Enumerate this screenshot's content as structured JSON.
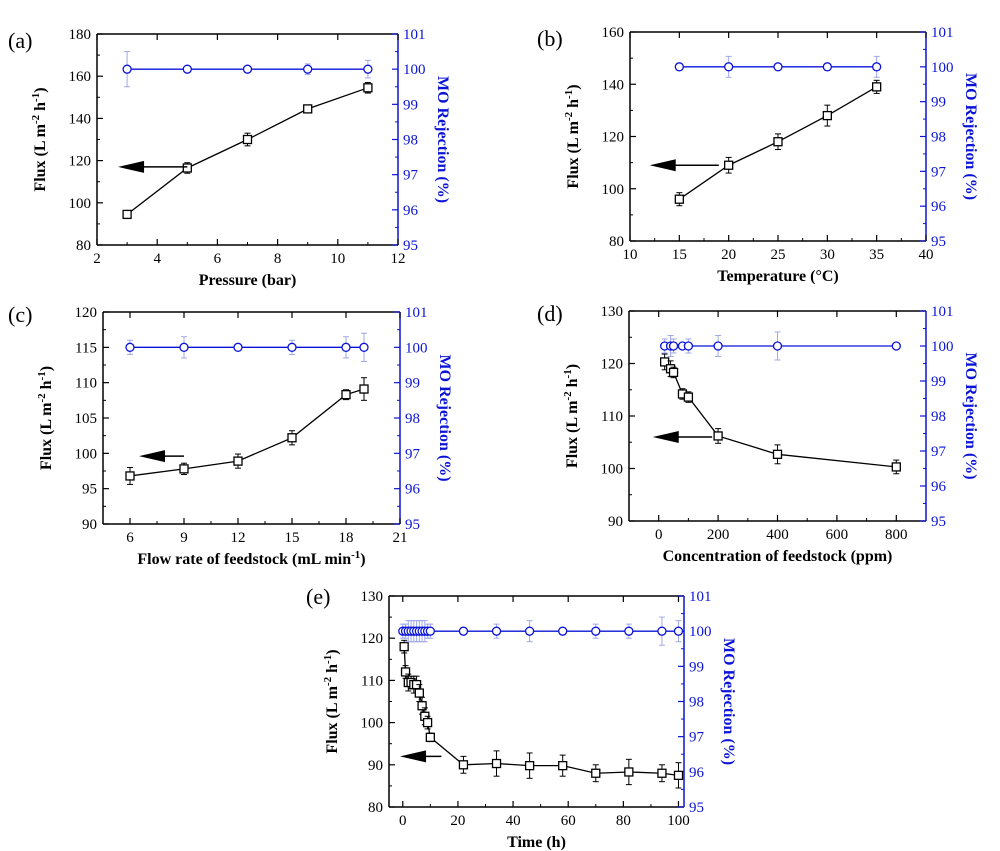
{
  "colors": {
    "flux": "#000000",
    "rejection": "#0b14d6",
    "rejection_err": "#9fa8e8"
  },
  "chart_data": [
    {
      "id": "a",
      "type": "line",
      "panel_label": "(a)",
      "xlabel": "Pressure (bar)",
      "ylabel": "Flux (L m-2 h-1)",
      "y2label": "MO Rejection (%)",
      "xlim": [
        2,
        12
      ],
      "xticks": [
        2,
        4,
        6,
        8,
        10,
        12
      ],
      "xtick_labels": [
        "2",
        "4",
        "6",
        "8",
        "10",
        "12"
      ],
      "ylim": [
        80,
        180
      ],
      "yticks": [
        80,
        100,
        120,
        140,
        160,
        180
      ],
      "ytick_labels": [
        "80",
        "100",
        "120",
        "140",
        "160",
        "180"
      ],
      "y2lim": [
        95,
        101
      ],
      "y2ticks": [
        95,
        96,
        97,
        98,
        99,
        100,
        101
      ],
      "y2tick_labels": [
        "95",
        "96",
        "97",
        "98",
        "99",
        "100",
        "101"
      ],
      "series": [
        {
          "name": "Flux",
          "axis": "left",
          "marker": "square",
          "x": [
            3,
            5,
            7,
            9,
            11
          ],
          "y": [
            94.5,
            116.5,
            130,
            144.5,
            154.5
          ],
          "err": [
            1.5,
            2.5,
            3,
            1.5,
            2.5
          ]
        },
        {
          "name": "MO Rejection",
          "axis": "right",
          "marker": "circle",
          "x": [
            3,
            5,
            7,
            9,
            11
          ],
          "y": [
            100,
            100,
            100,
            100,
            100
          ],
          "err": [
            0.5,
            0,
            0,
            0.15,
            0.25
          ]
        }
      ],
      "arrow": {
        "x_from": 5,
        "x_to": 2.7,
        "y": 117
      }
    },
    {
      "id": "b",
      "type": "line",
      "panel_label": "(b)",
      "xlabel": "Temperature (°C)",
      "ylabel": "Flux (L m-2 h-1)",
      "y2label": "MO Rejection (%)",
      "xlim": [
        10,
        40
      ],
      "xticks": [
        10,
        15,
        20,
        25,
        30,
        35,
        40
      ],
      "xtick_labels": [
        "10",
        "15",
        "20",
        "25",
        "30",
        "35",
        "40"
      ],
      "ylim": [
        80,
        160
      ],
      "yticks": [
        80,
        100,
        120,
        140,
        160
      ],
      "ytick_labels": [
        "80",
        "100",
        "120",
        "140",
        "160"
      ],
      "y2lim": [
        95,
        101
      ],
      "y2ticks": [
        95,
        96,
        97,
        98,
        99,
        100,
        101
      ],
      "y2tick_labels": [
        "95",
        "96",
        "97",
        "98",
        "99",
        "100",
        "101"
      ],
      "series": [
        {
          "name": "Flux",
          "axis": "left",
          "marker": "square",
          "x": [
            15,
            20,
            25,
            30,
            35
          ],
          "y": [
            96,
            109,
            118,
            128,
            139
          ],
          "err": [
            2.5,
            3,
            3,
            4,
            2.5
          ]
        },
        {
          "name": "MO Rejection",
          "axis": "right",
          "marker": "circle",
          "x": [
            15,
            20,
            25,
            30,
            35
          ],
          "y": [
            100,
            100,
            100,
            100,
            100
          ],
          "err": [
            0.1,
            0.3,
            0,
            0.1,
            0.3
          ]
        }
      ],
      "arrow": {
        "x_from": 19,
        "x_to": 12,
        "y": 109
      }
    },
    {
      "id": "c",
      "type": "line",
      "panel_label": "(c)",
      "xlabel": "Flow rate of feedstock (mL min-1)",
      "ylabel": "Flux (L m-2 h-1)",
      "y2label": "MO Rejection (%)",
      "xlim": [
        4.5,
        21
      ],
      "xticks": [
        6,
        9,
        12,
        15,
        18,
        21
      ],
      "xtick_labels": [
        "6",
        "9",
        "12",
        "15",
        "18",
        "21"
      ],
      "ylim": [
        90,
        120
      ],
      "yticks": [
        90,
        95,
        100,
        105,
        110,
        115,
        120
      ],
      "ytick_labels": [
        "90",
        "95",
        "100",
        "105",
        "110",
        "115",
        "120"
      ],
      "y2lim": [
        95,
        101
      ],
      "y2ticks": [
        95,
        96,
        97,
        98,
        99,
        100,
        101
      ],
      "y2tick_labels": [
        "95",
        "96",
        "97",
        "98",
        "99",
        "100",
        "101"
      ],
      "series": [
        {
          "name": "Flux",
          "axis": "left",
          "marker": "square",
          "x": [
            6,
            9,
            12,
            15,
            18,
            19
          ],
          "y": [
            96.8,
            97.8,
            98.9,
            102.2,
            108.3,
            109.1
          ],
          "err": [
            1.2,
            0.8,
            1.0,
            1.0,
            0.7,
            1.6
          ]
        },
        {
          "name": "MO Rejection",
          "axis": "right",
          "marker": "circle",
          "x": [
            6,
            9,
            12,
            15,
            18,
            19
          ],
          "y": [
            100,
            100,
            100,
            100,
            100,
            100
          ],
          "err": [
            0.2,
            0.3,
            0,
            0.2,
            0.3,
            0.4
          ]
        }
      ],
      "arrow": {
        "x_from": 9,
        "x_to": 6.5,
        "y": 99.6
      }
    },
    {
      "id": "d",
      "type": "line",
      "panel_label": "(d)",
      "xlabel": "Concentration of feedstock (ppm)",
      "ylabel": "Flux (L m-2 h-1)",
      "y2label": "MO Rejection (%)",
      "xlim": [
        -100,
        900
      ],
      "xticks": [
        0,
        200,
        400,
        600,
        800
      ],
      "xtick_labels": [
        "0",
        "200",
        "400",
        "600",
        "800"
      ],
      "ylim": [
        90,
        130
      ],
      "yticks": [
        90,
        100,
        110,
        120,
        130
      ],
      "ytick_labels": [
        "90",
        "100",
        "110",
        "120",
        "130"
      ],
      "y2lim": [
        95,
        101
      ],
      "y2ticks": [
        95,
        96,
        97,
        98,
        99,
        100,
        101
      ],
      "y2tick_labels": [
        "95",
        "96",
        "97",
        "98",
        "99",
        "100",
        "101"
      ],
      "series": [
        {
          "name": "Flux",
          "axis": "left",
          "marker": "square",
          "x": [
            20,
            40,
            50,
            80,
            100,
            200,
            400,
            800
          ],
          "y": [
            120.3,
            119,
            118.3,
            114.2,
            113.6,
            106.2,
            102.7,
            100.3
          ],
          "err": [
            1.5,
            1.5,
            1.0,
            1.0,
            1.0,
            1.4,
            1.8,
            1.3
          ]
        },
        {
          "name": "MO Rejection",
          "axis": "right",
          "marker": "circle",
          "x": [
            20,
            40,
            50,
            80,
            100,
            200,
            400,
            800
          ],
          "y": [
            100,
            100,
            100,
            100,
            100,
            100,
            100,
            100
          ],
          "err": [
            0.2,
            0.3,
            0.2,
            0,
            0.2,
            0.3,
            0.4,
            0
          ]
        }
      ],
      "arrow": {
        "x_from": 180,
        "x_to": -20,
        "y": 106
      }
    },
    {
      "id": "e",
      "type": "line",
      "panel_label": "(e)",
      "xlabel": "Time (h)",
      "ylabel": "Flux (L m-2 h-1)",
      "y2label": "MO Rejection (%)",
      "xlim": [
        -5,
        102
      ],
      "xticks": [
        0,
        20,
        40,
        60,
        80,
        100
      ],
      "xtick_labels": [
        "0",
        "20",
        "40",
        "60",
        "80",
        "100"
      ],
      "ylim": [
        80,
        130
      ],
      "yticks": [
        80,
        90,
        100,
        110,
        120,
        130
      ],
      "ytick_labels": [
        "80",
        "90",
        "100",
        "110",
        "120",
        "130"
      ],
      "y2lim": [
        95,
        101
      ],
      "y2ticks": [
        95,
        96,
        97,
        98,
        99,
        100,
        101
      ],
      "y2tick_labels": [
        "95",
        "96",
        "97",
        "98",
        "99",
        "100",
        "101"
      ],
      "series": [
        {
          "name": "Flux",
          "axis": "left",
          "marker": "square",
          "x": [
            0.5,
            1,
            2,
            3,
            4,
            5,
            6,
            7,
            8,
            9,
            10,
            22,
            34,
            46,
            58,
            70,
            82,
            94,
            100
          ],
          "y": [
            118,
            112,
            109.5,
            109.5,
            109,
            109,
            107,
            104,
            101.5,
            100,
            96.5,
            90,
            90.3,
            89.8,
            89.8,
            88,
            88.3,
            88,
            87.5
          ],
          "err": [
            1.5,
            1.5,
            2,
            1.5,
            2,
            2,
            2,
            2,
            2,
            1.5,
            1,
            2,
            3,
            3,
            2.5,
            2,
            3,
            2,
            3
          ]
        },
        {
          "name": "MO Rejection",
          "axis": "right",
          "marker": "circle",
          "x": [
            0,
            1,
            2,
            3,
            4,
            5,
            6,
            7,
            8,
            9,
            10,
            22,
            34,
            46,
            58,
            70,
            82,
            94,
            100
          ],
          "y": [
            100,
            100,
            100,
            100,
            100,
            100,
            100,
            100,
            100,
            100,
            100,
            100,
            100,
            100,
            100,
            100,
            100,
            100,
            100
          ],
          "err": [
            0.2,
            0.2,
            0.3,
            0.3,
            0.3,
            0.3,
            0.3,
            0.3,
            0.3,
            0.2,
            0.2,
            0.1,
            0.2,
            0.3,
            0.1,
            0.2,
            0.2,
            0.4,
            0.3
          ]
        }
      ],
      "arrow": {
        "x_from": 14,
        "x_to": -1,
        "y": 92
      }
    }
  ]
}
